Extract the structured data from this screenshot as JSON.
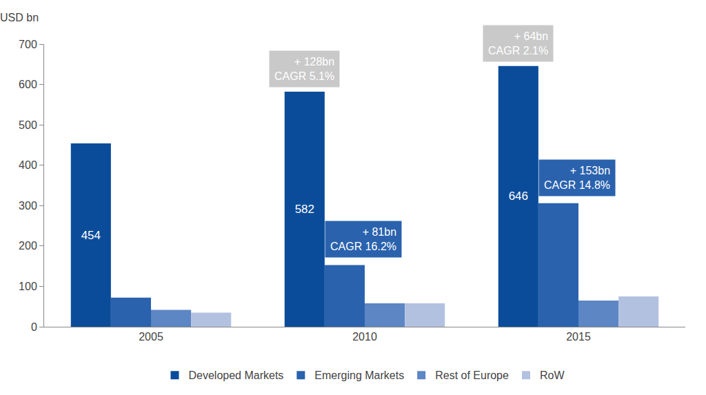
{
  "chart_data": {
    "type": "bar",
    "y_label": "USD bn",
    "categories": [
      "2005",
      "2010",
      "2015"
    ],
    "series": [
      {
        "name": "Developed Markets",
        "color": "#0b4c9a",
        "values": [
          454,
          582,
          646
        ],
        "data_labels": true
      },
      {
        "name": "Emerging Markets",
        "color": "#2a62ad",
        "values": [
          72,
          153,
          306
        ]
      },
      {
        "name": "Rest of Europe",
        "color": "#5c86c4",
        "values": [
          42,
          58,
          65
        ]
      },
      {
        "name": "RoW",
        "color": "#b3c1e1",
        "values": [
          35,
          58,
          75
        ]
      }
    ],
    "ylim": [
      0,
      700
    ],
    "yticks": [
      0,
      100,
      200,
      300,
      400,
      500,
      600,
      700
    ],
    "grid": false,
    "legend": "bottom",
    "annotations": [
      {
        "category": "2010",
        "series": "Developed Markets",
        "text": [
          "+ 128bn",
          "CAGR 5.1%"
        ]
      },
      {
        "category": "2015",
        "series": "Developed Markets",
        "text": [
          "+ 64bn",
          "CAGR 2.1%"
        ]
      },
      {
        "category": "2010",
        "series": "Emerging Markets",
        "text": [
          "+ 81bn",
          "CAGR 16.2%"
        ]
      },
      {
        "category": "2015",
        "series": "Emerging Markets",
        "text": [
          "+ 153bn",
          "CAGR 14.8%"
        ]
      }
    ]
  }
}
